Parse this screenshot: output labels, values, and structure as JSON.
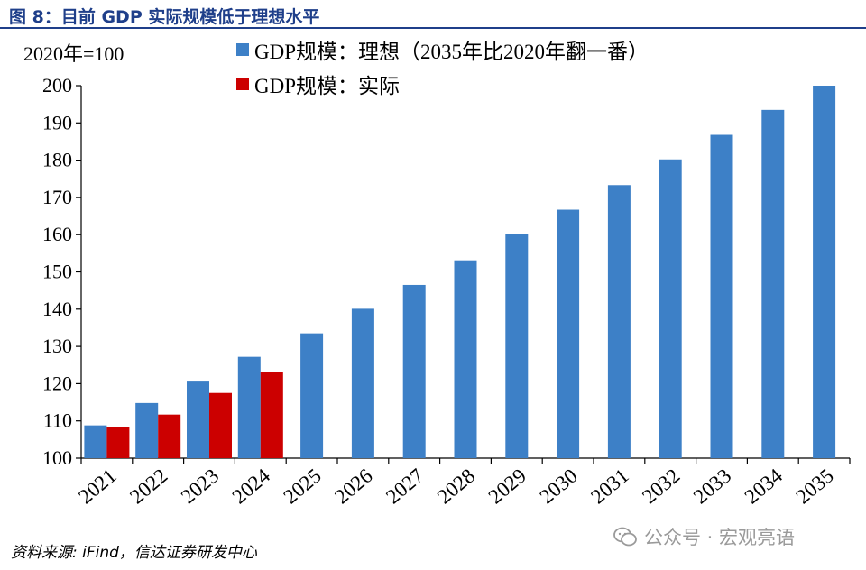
{
  "figure_title": "图 8：目前 GDP 实际规模低于理想水平",
  "source_note": "资料来源: iFind，信达证券研发中心",
  "watermark_text": "公众号 · 宏观亮语",
  "chart_data": {
    "type": "bar",
    "unit_label": "2020年=100",
    "categories": [
      "2021",
      "2022",
      "2023",
      "2024",
      "2025",
      "2026",
      "2027",
      "2028",
      "2029",
      "2030",
      "2031",
      "2032",
      "2033",
      "2034",
      "2035"
    ],
    "series": [
      {
        "name": "GDP规模：理想（2035年比2020年翻一番）",
        "color": "#3d80c7",
        "values": [
          108.8,
          114.8,
          120.8,
          127.2,
          133.5,
          140.1,
          146.5,
          153.1,
          160.1,
          166.7,
          173.3,
          180.2,
          186.8,
          193.5,
          200.0
        ]
      },
      {
        "name": "GDP规模：实际",
        "color": "#cc0000",
        "values": [
          108.4,
          111.7,
          117.5,
          123.2,
          null,
          null,
          null,
          null,
          null,
          null,
          null,
          null,
          null,
          null,
          null
        ]
      }
    ],
    "ylim": [
      100,
      200
    ],
    "yticks": [
      100,
      110,
      120,
      130,
      140,
      150,
      160,
      170,
      180,
      190,
      200
    ],
    "xlabel": "",
    "ylabel": "",
    "grid": false,
    "legend_position": "top-center"
  }
}
